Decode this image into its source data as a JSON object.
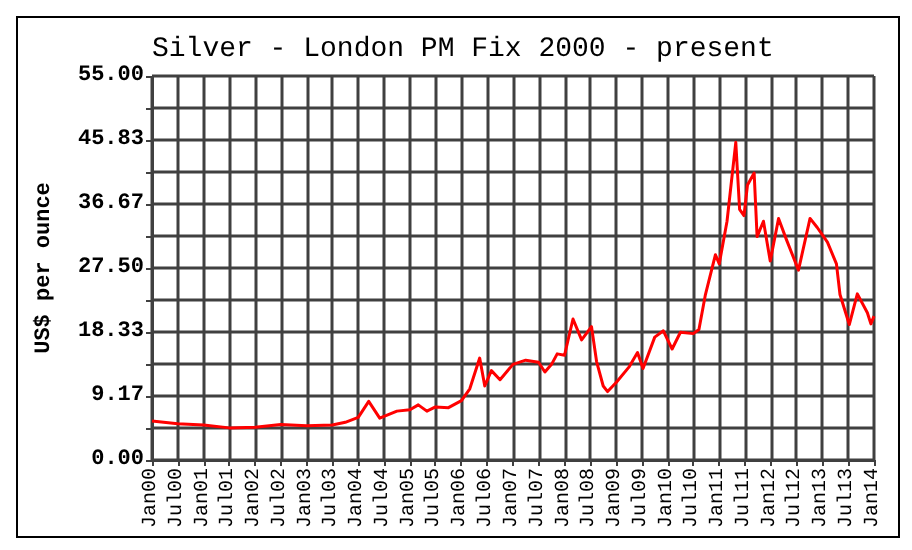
{
  "chart_data": {
    "type": "line",
    "title": "Silver - London PM Fix 2000 - present",
    "ylabel": "US$ per ounce",
    "x": [
      "2000-01-01",
      "2000-07-01",
      "2001-01-01",
      "2001-07-01",
      "2002-01-01",
      "2002-07-01",
      "2003-01-01",
      "2003-07-01",
      "2003-10-01",
      "2004-01-01",
      "2004-03-15",
      "2004-06-01",
      "2004-10-01",
      "2005-01-01",
      "2005-03-01",
      "2005-05-01",
      "2005-07-01",
      "2005-10-01",
      "2006-01-01",
      "2006-03-01",
      "2006-05-10",
      "2006-06-15",
      "2006-08-01",
      "2006-10-01",
      "2007-01-01",
      "2007-04-01",
      "2007-07-01",
      "2007-08-15",
      "2007-10-01",
      "2007-11-10",
      "2008-01-01",
      "2008-03-01",
      "2008-05-01",
      "2008-07-10",
      "2008-08-15",
      "2008-10-01",
      "2008-11-01",
      "2009-01-01",
      "2009-04-01",
      "2009-06-01",
      "2009-07-10",
      "2009-10-01",
      "2009-12-01",
      "2010-02-01",
      "2010-04-01",
      "2010-07-01",
      "2010-08-10",
      "2010-09-25",
      "2010-12-05",
      "2011-01-01",
      "2011-02-25",
      "2011-04-28",
      "2011-05-25",
      "2011-06-25",
      "2011-07-20",
      "2011-09-05",
      "2011-09-26",
      "2011-11-10",
      "2011-12-28",
      "2012-02-25",
      "2012-04-20",
      "2012-07-15",
      "2012-10-05",
      "2012-11-25",
      "2013-02-05",
      "2013-04-10",
      "2013-05-05",
      "2013-07-10",
      "2013-09-05",
      "2013-11-15",
      "2013-12-10",
      "2014-01-01"
    ],
    "series": [
      {
        "color": "#ff0000",
        "values": [
          5.6,
          5.2,
          5.0,
          4.6,
          4.7,
          5.1,
          4.9,
          5.0,
          5.4,
          6.1,
          8.4,
          6.0,
          7.0,
          7.2,
          7.9,
          7.0,
          7.6,
          7.5,
          8.5,
          10.2,
          14.6,
          10.6,
          12.8,
          11.5,
          13.7,
          14.3,
          14.0,
          12.6,
          13.7,
          15.2,
          15.0,
          20.2,
          17.2,
          19.1,
          14.1,
          10.6,
          9.8,
          11.1,
          13.3,
          15.4,
          13.1,
          17.6,
          18.5,
          15.9,
          18.3,
          18.1,
          18.7,
          23.7,
          29.4,
          28.1,
          34.2,
          45.5,
          35.9,
          35.0,
          39.4,
          41.1,
          32.0,
          34.2,
          28.5,
          34.6,
          31.6,
          27.2,
          34.6,
          33.3,
          31.2,
          28.1,
          23.7,
          19.4,
          23.8,
          21.1,
          19.5,
          20.6
        ]
      }
    ],
    "xlim": [
      "2000-01-01",
      "2014-01-01"
    ],
    "xticks": [
      {
        "value": "2000-01-01",
        "label": "Jan00"
      },
      {
        "value": "2000-07-01",
        "label": "Jul00"
      },
      {
        "value": "2001-01-01",
        "label": "Jan01"
      },
      {
        "value": "2001-07-01",
        "label": "Jul01"
      },
      {
        "value": "2002-01-01",
        "label": "Jan02"
      },
      {
        "value": "2002-07-01",
        "label": "Jul02"
      },
      {
        "value": "2003-01-01",
        "label": "Jan03"
      },
      {
        "value": "2003-07-01",
        "label": "Jul03"
      },
      {
        "value": "2004-01-01",
        "label": "Jan04"
      },
      {
        "value": "2004-07-01",
        "label": "Jul04"
      },
      {
        "value": "2005-01-01",
        "label": "Jan05"
      },
      {
        "value": "2005-07-01",
        "label": "Jul05"
      },
      {
        "value": "2006-01-01",
        "label": "Jan06"
      },
      {
        "value": "2006-07-01",
        "label": "Jul06"
      },
      {
        "value": "2007-01-01",
        "label": "Jan07"
      },
      {
        "value": "2007-07-01",
        "label": "Jul07"
      },
      {
        "value": "2008-01-01",
        "label": "Jan08"
      },
      {
        "value": "2008-07-01",
        "label": "Jul08"
      },
      {
        "value": "2009-01-01",
        "label": "Jan09"
      },
      {
        "value": "2009-07-01",
        "label": "Jul09"
      },
      {
        "value": "2010-01-01",
        "label": "Jan10"
      },
      {
        "value": "2010-07-01",
        "label": "Jul10"
      },
      {
        "value": "2011-01-01",
        "label": "Jan11"
      },
      {
        "value": "2011-07-01",
        "label": "Jul11"
      },
      {
        "value": "2012-01-01",
        "label": "Jan12"
      },
      {
        "value": "2012-07-01",
        "label": "Jul12"
      },
      {
        "value": "2013-01-01",
        "label": "Jan13"
      },
      {
        "value": "2013-07-01",
        "label": "Jul13"
      },
      {
        "value": "2014-01-01",
        "label": "Jan14"
      }
    ],
    "ylim": [
      0,
      55
    ],
    "yticks": [
      {
        "value": 0,
        "label": "0.00"
      },
      {
        "value": 4.5833,
        "label": null
      },
      {
        "value": 9.1667,
        "label": "9.17"
      },
      {
        "value": 13.75,
        "label": null
      },
      {
        "value": 18.3333,
        "label": "18.33"
      },
      {
        "value": 22.9167,
        "label": null
      },
      {
        "value": 27.5,
        "label": "27.50"
      },
      {
        "value": 32.0833,
        "label": null
      },
      {
        "value": 36.6667,
        "label": "36.67"
      },
      {
        "value": 41.25,
        "label": null
      },
      {
        "value": 45.8333,
        "label": "45.83"
      },
      {
        "value": 50.4167,
        "label": null
      },
      {
        "value": 55,
        "label": "55.00"
      }
    ],
    "grid": true
  }
}
